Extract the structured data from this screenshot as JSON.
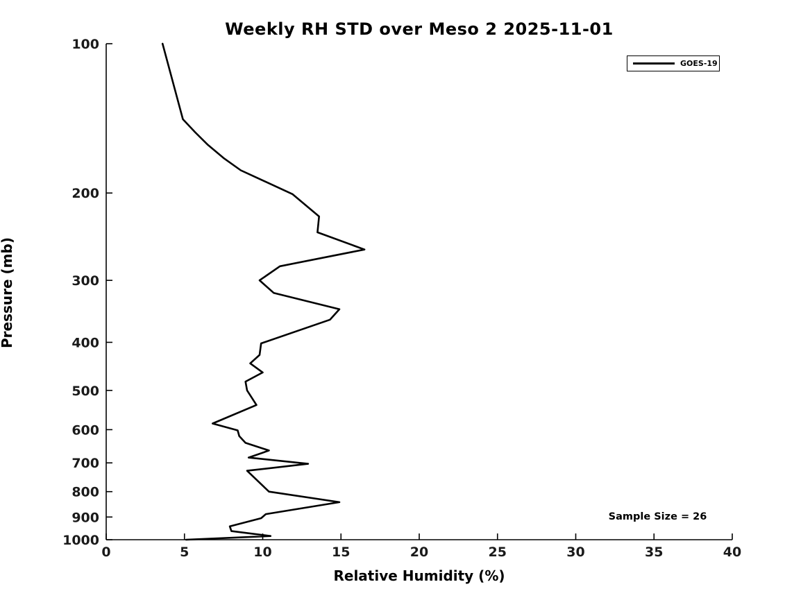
{
  "figure": {
    "title": "Weekly RH STD over Meso 2 2025-11-01",
    "xlabel": "Relative Humidity (%)",
    "ylabel": "Pressure (mb)",
    "annotation": "Sample Size = 26",
    "legend": {
      "entries": [
        {
          "label": "GOES-19",
          "line_color": "#000000"
        }
      ],
      "position": "upper-right"
    }
  },
  "chart_data": {
    "type": "line",
    "title": "Weekly RH STD over Meso 2 2025-11-01",
    "xlabel": "Relative Humidity (%)",
    "ylabel": "Pressure (mb)",
    "xlim": [
      0,
      40
    ],
    "ylim": [
      100,
      1000
    ],
    "yscale": "log",
    "y_inverted": true,
    "grid": false,
    "xticks": [
      0,
      5,
      10,
      15,
      20,
      25,
      30,
      35,
      40
    ],
    "yticks": [
      100,
      200,
      300,
      400,
      500,
      600,
      700,
      800,
      900,
      1000
    ],
    "legend_position": "upper-right",
    "line_color": "#000000",
    "line_width": 2.6,
    "annotation": "Sample Size = 26",
    "series": [
      {
        "name": "GOES-19",
        "pressure_mb": [
          100,
          142,
          151,
          160,
          170,
          180,
          201,
          223,
          240,
          260,
          281,
          300,
          318,
          343,
          360,
          402,
          424,
          441,
          460,
          480,
          500,
          535,
          583,
          602,
          618,
          638,
          661,
          683,
          703,
          726,
          800,
          840,
          888,
          905,
          940,
          961,
          983,
          1000
        ],
        "rh_std_pct": [
          3.6,
          4.9,
          5.7,
          6.5,
          7.5,
          8.6,
          11.9,
          13.6,
          13.5,
          16.5,
          11.1,
          9.8,
          10.7,
          14.9,
          14.3,
          9.9,
          9.8,
          9.2,
          10.0,
          8.9,
          9.0,
          9.6,
          6.8,
          8.4,
          8.5,
          8.9,
          10.4,
          9.1,
          12.9,
          9.0,
          10.4,
          14.9,
          10.2,
          9.9,
          7.9,
          8.0,
          10.5,
          5.1
        ]
      }
    ]
  }
}
